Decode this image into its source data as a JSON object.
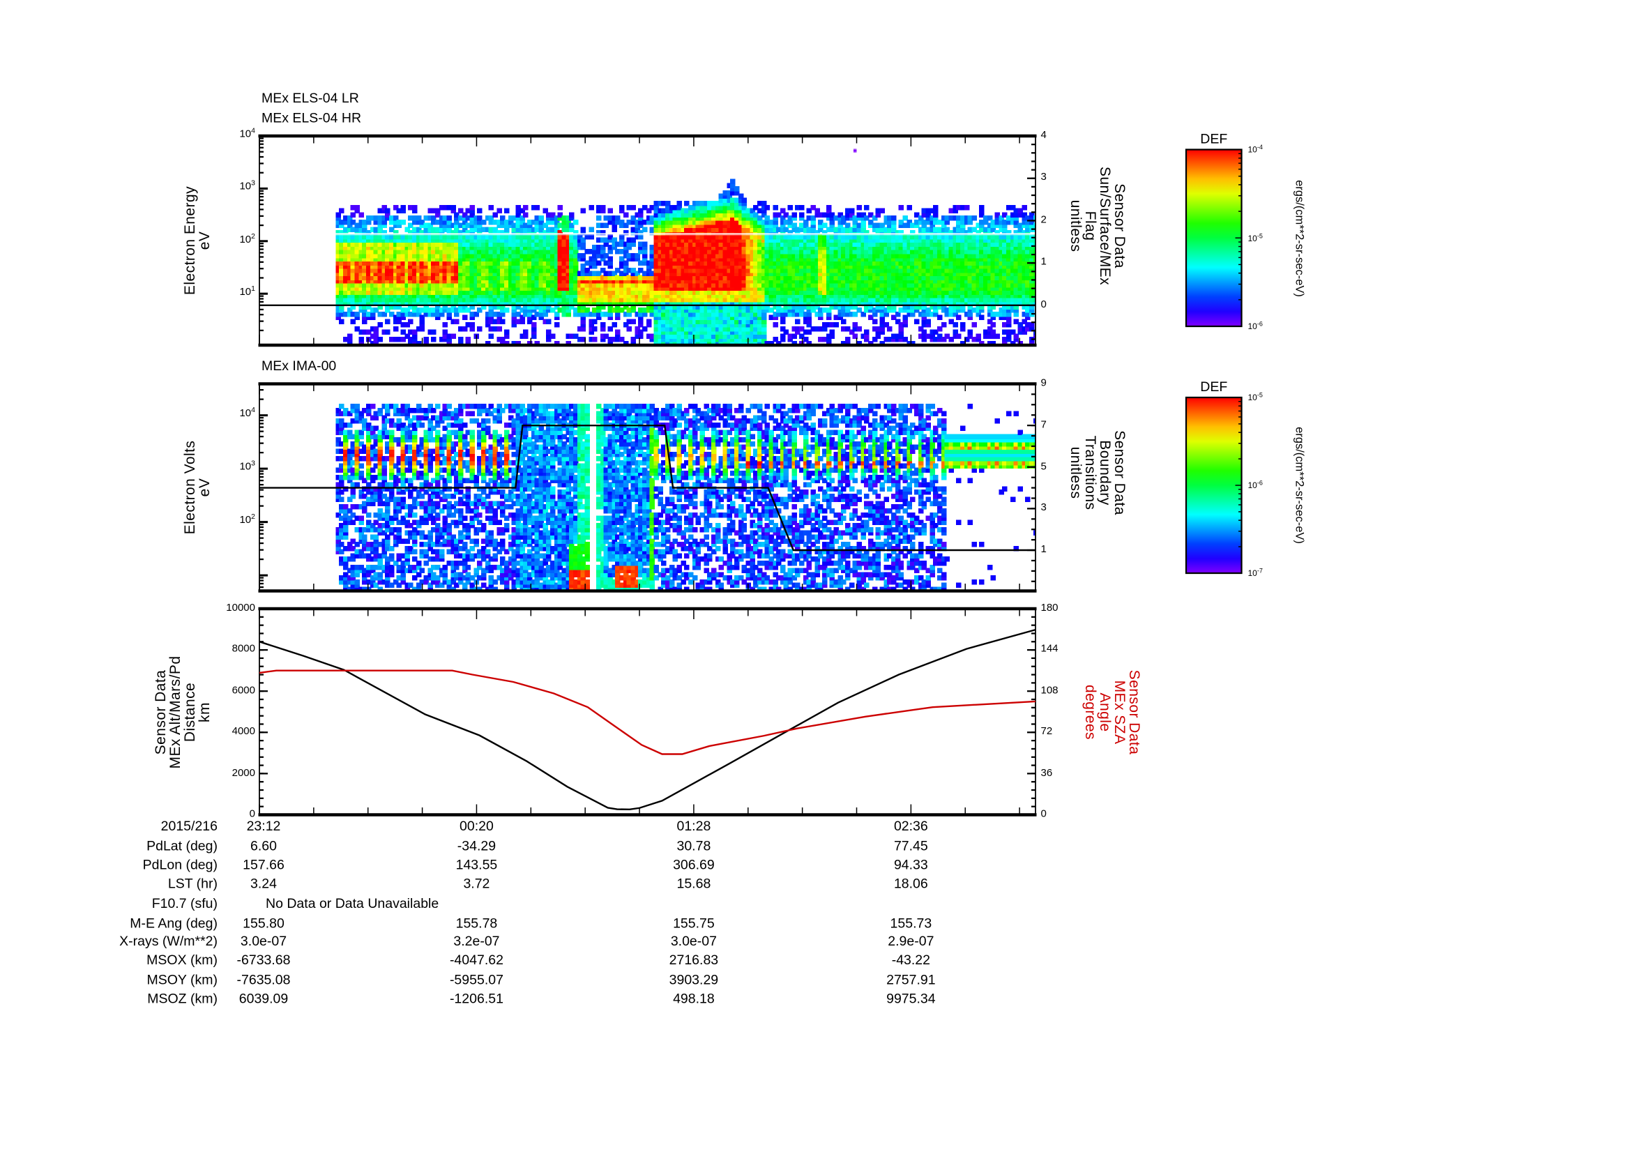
{
  "chart_data": [
    {
      "type": "heatmap",
      "title": [
        "MEx ELS-04 LR",
        "MEx ELS-04 HR"
      ],
      "xlim": [
        0,
        243
      ],
      "x_units": "minutes after 23:12",
      "ylabel": [
        "Electron Energy",
        "eV"
      ],
      "yscale": "log",
      "ylim": [
        1.05,
        10000
      ],
      "yticks": [
        {
          "value": 10000,
          "base": "10",
          "exp": "4"
        },
        {
          "value": 1000,
          "base": "10",
          "exp": "3"
        },
        {
          "value": 100,
          "base": "10",
          "exp": "2"
        },
        {
          "value": 10,
          "base": "10",
          "exp": "1"
        }
      ],
      "y2label": [
        "Sensor Data",
        "Sun/Surface/MEx",
        "Flag",
        "unitless"
      ],
      "y2lim": [
        -0.94,
        4
      ],
      "y2ticks": [
        4,
        3,
        2,
        1,
        0
      ],
      "y2minor": 0.2,
      "colorbar": {
        "title": "DEF",
        "units": "ergs/(cm**2-sr-sec-eV)",
        "range": [
          1e-06,
          0.0001
        ],
        "ticks": [
          {
            "value": -4,
            "base": "10",
            "exp": "-4"
          },
          {
            "value": -5,
            "base": "10",
            "exp": "-5"
          },
          {
            "value": -6,
            "base": "10",
            "exp": "-6"
          }
        ]
      },
      "series": [
        {
          "name": "Sun/Surface/MEx Flag",
          "axis": "y2",
          "color": "#000000",
          "x": [
            0,
            243
          ],
          "y": [
            0,
            0
          ]
        }
      ]
    },
    {
      "type": "heatmap",
      "title": [
        "MEx IMA-00"
      ],
      "xlim": [
        0,
        243
      ],
      "x_units": "minutes after 23:12",
      "ylabel": [
        "Electron Volts",
        "eV"
      ],
      "yscale": "log",
      "ylim": [
        5.1,
        38900
      ],
      "yticks": [
        {
          "value": 10000,
          "base": "10",
          "exp": "4"
        },
        {
          "value": 1000,
          "base": "10",
          "exp": "3"
        },
        {
          "value": 100,
          "base": "10",
          "exp": "2"
        }
      ],
      "y2label": [
        "Sensor Data",
        "Boundary",
        "Transitions",
        "unitless"
      ],
      "y2lim": [
        -0.96,
        9
      ],
      "y2ticks": [
        9,
        7,
        5,
        3,
        1
      ],
      "y2minor": 0.5,
      "colorbar": {
        "title": "DEF",
        "units": "ergs/(cm**2-sr-sec-eV)",
        "range": [
          1e-07,
          1e-05
        ],
        "ticks": [
          {
            "value": -5,
            "base": "10",
            "exp": "-5"
          },
          {
            "value": -6,
            "base": "10",
            "exp": "-6"
          },
          {
            "value": -7,
            "base": "10",
            "exp": "-7"
          }
        ]
      },
      "series": [
        {
          "name": "Boundary Transitions",
          "axis": "y2",
          "color": "#000000",
          "x": [
            0,
            80.2,
            82.4,
            126.9,
            129.5,
            159.3,
            167.2,
            243
          ],
          "y": [
            4,
            4,
            7,
            7,
            4,
            4,
            1,
            1
          ]
        }
      ]
    },
    {
      "type": "line",
      "xlim": [
        0,
        243
      ],
      "x_units": "minutes after 23:12",
      "ylabel": [
        "Sensor Data",
        "MEx Alt/Mars/Pd",
        "Distance",
        "km"
      ],
      "yscale": "linear",
      "ylim": [
        0,
        10000
      ],
      "yticks": [
        {
          "value": 10000
        },
        {
          "value": 8000
        },
        {
          "value": 6000
        },
        {
          "value": 4000
        },
        {
          "value": 2000
        },
        {
          "value": 0
        }
      ],
      "yminor": 400,
      "y2label": [
        "Sensor Data",
        "MEx SZA",
        "Angle",
        "degrees"
      ],
      "y2lim": [
        0,
        180
      ],
      "y2ticks": [
        180,
        144,
        108,
        72,
        36,
        0
      ],
      "y2minor": 7.2,
      "y2color": "#cc0000",
      "xticks": [
        {
          "value": 0,
          "label": "23:12"
        },
        {
          "value": 68,
          "label": "00:20"
        },
        {
          "value": 136,
          "label": "01:28"
        },
        {
          "value": 204,
          "label": "02:36"
        }
      ],
      "series": [
        {
          "name": "MEx Alt/Mars/Pd Distance (km)",
          "axis": "y",
          "color": "#000000",
          "x": [
            0,
            13.8,
            26.5,
            51.9,
            68.9,
            83.7,
            96.4,
            109.1,
            112,
            115.9,
            119,
            126.1,
            136.7,
            147.3,
            164.2,
            181.2,
            200.2,
            221.4,
            243
          ],
          "y": [
            8400,
            7710,
            7030,
            4875,
            3855,
            2600,
            1360,
            340,
            270,
            260,
            330,
            680,
            1590,
            2500,
            3970,
            5440,
            6800,
            8050,
            8980
          ]
        },
        {
          "name": "MEx SZA Angle (degrees)",
          "axis": "y2",
          "color": "#cc0000",
          "x": [
            0,
            5.3,
            60.4,
            66.7,
            79.5,
            92.2,
            102.8,
            111.2,
            119.7,
            126.1,
            132.4,
            140.9,
            157.9,
            168.5,
            189.7,
            210.8,
            243
          ],
          "y": [
            124,
            126,
            126,
            122.4,
            116,
            106,
            94,
            77.6,
            61,
            53,
            53,
            60,
            69,
            75.5,
            85.7,
            94,
            99
          ]
        }
      ]
    }
  ],
  "ephemeris": {
    "date": "2015/216",
    "rows": [
      {
        "label": "PdLat (deg)",
        "values": [
          "6.60",
          "-34.29",
          "30.78",
          "77.45"
        ]
      },
      {
        "label": "PdLon (deg)",
        "values": [
          "157.66",
          "143.55",
          "306.69",
          "94.33"
        ]
      },
      {
        "label": "LST (hr)",
        "values": [
          "3.24",
          "3.72",
          "15.68",
          "18.06"
        ]
      },
      {
        "label": "F10.7 (sfu)",
        "note": "No Data or Data Unavailable"
      },
      {
        "label": "M-E Ang (deg)",
        "values": [
          "155.80",
          "155.78",
          "155.75",
          "155.73"
        ]
      },
      {
        "label": "X-rays (W/m**2)",
        "values": [
          "3.0e-07",
          "3.2e-07",
          "3.0e-07",
          "2.9e-07"
        ]
      },
      {
        "label": "MSOX (km)",
        "values": [
          "-6733.68",
          "-4047.62",
          "2716.83",
          "-43.22"
        ]
      },
      {
        "label": "MSOY (km)",
        "values": [
          "-7635.08",
          "-5955.07",
          "3903.29",
          "2757.91"
        ]
      },
      {
        "label": "MSOZ (km)",
        "values": [
          "6039.09",
          "-1206.51",
          "498.18",
          "9975.34"
        ]
      }
    ]
  }
}
